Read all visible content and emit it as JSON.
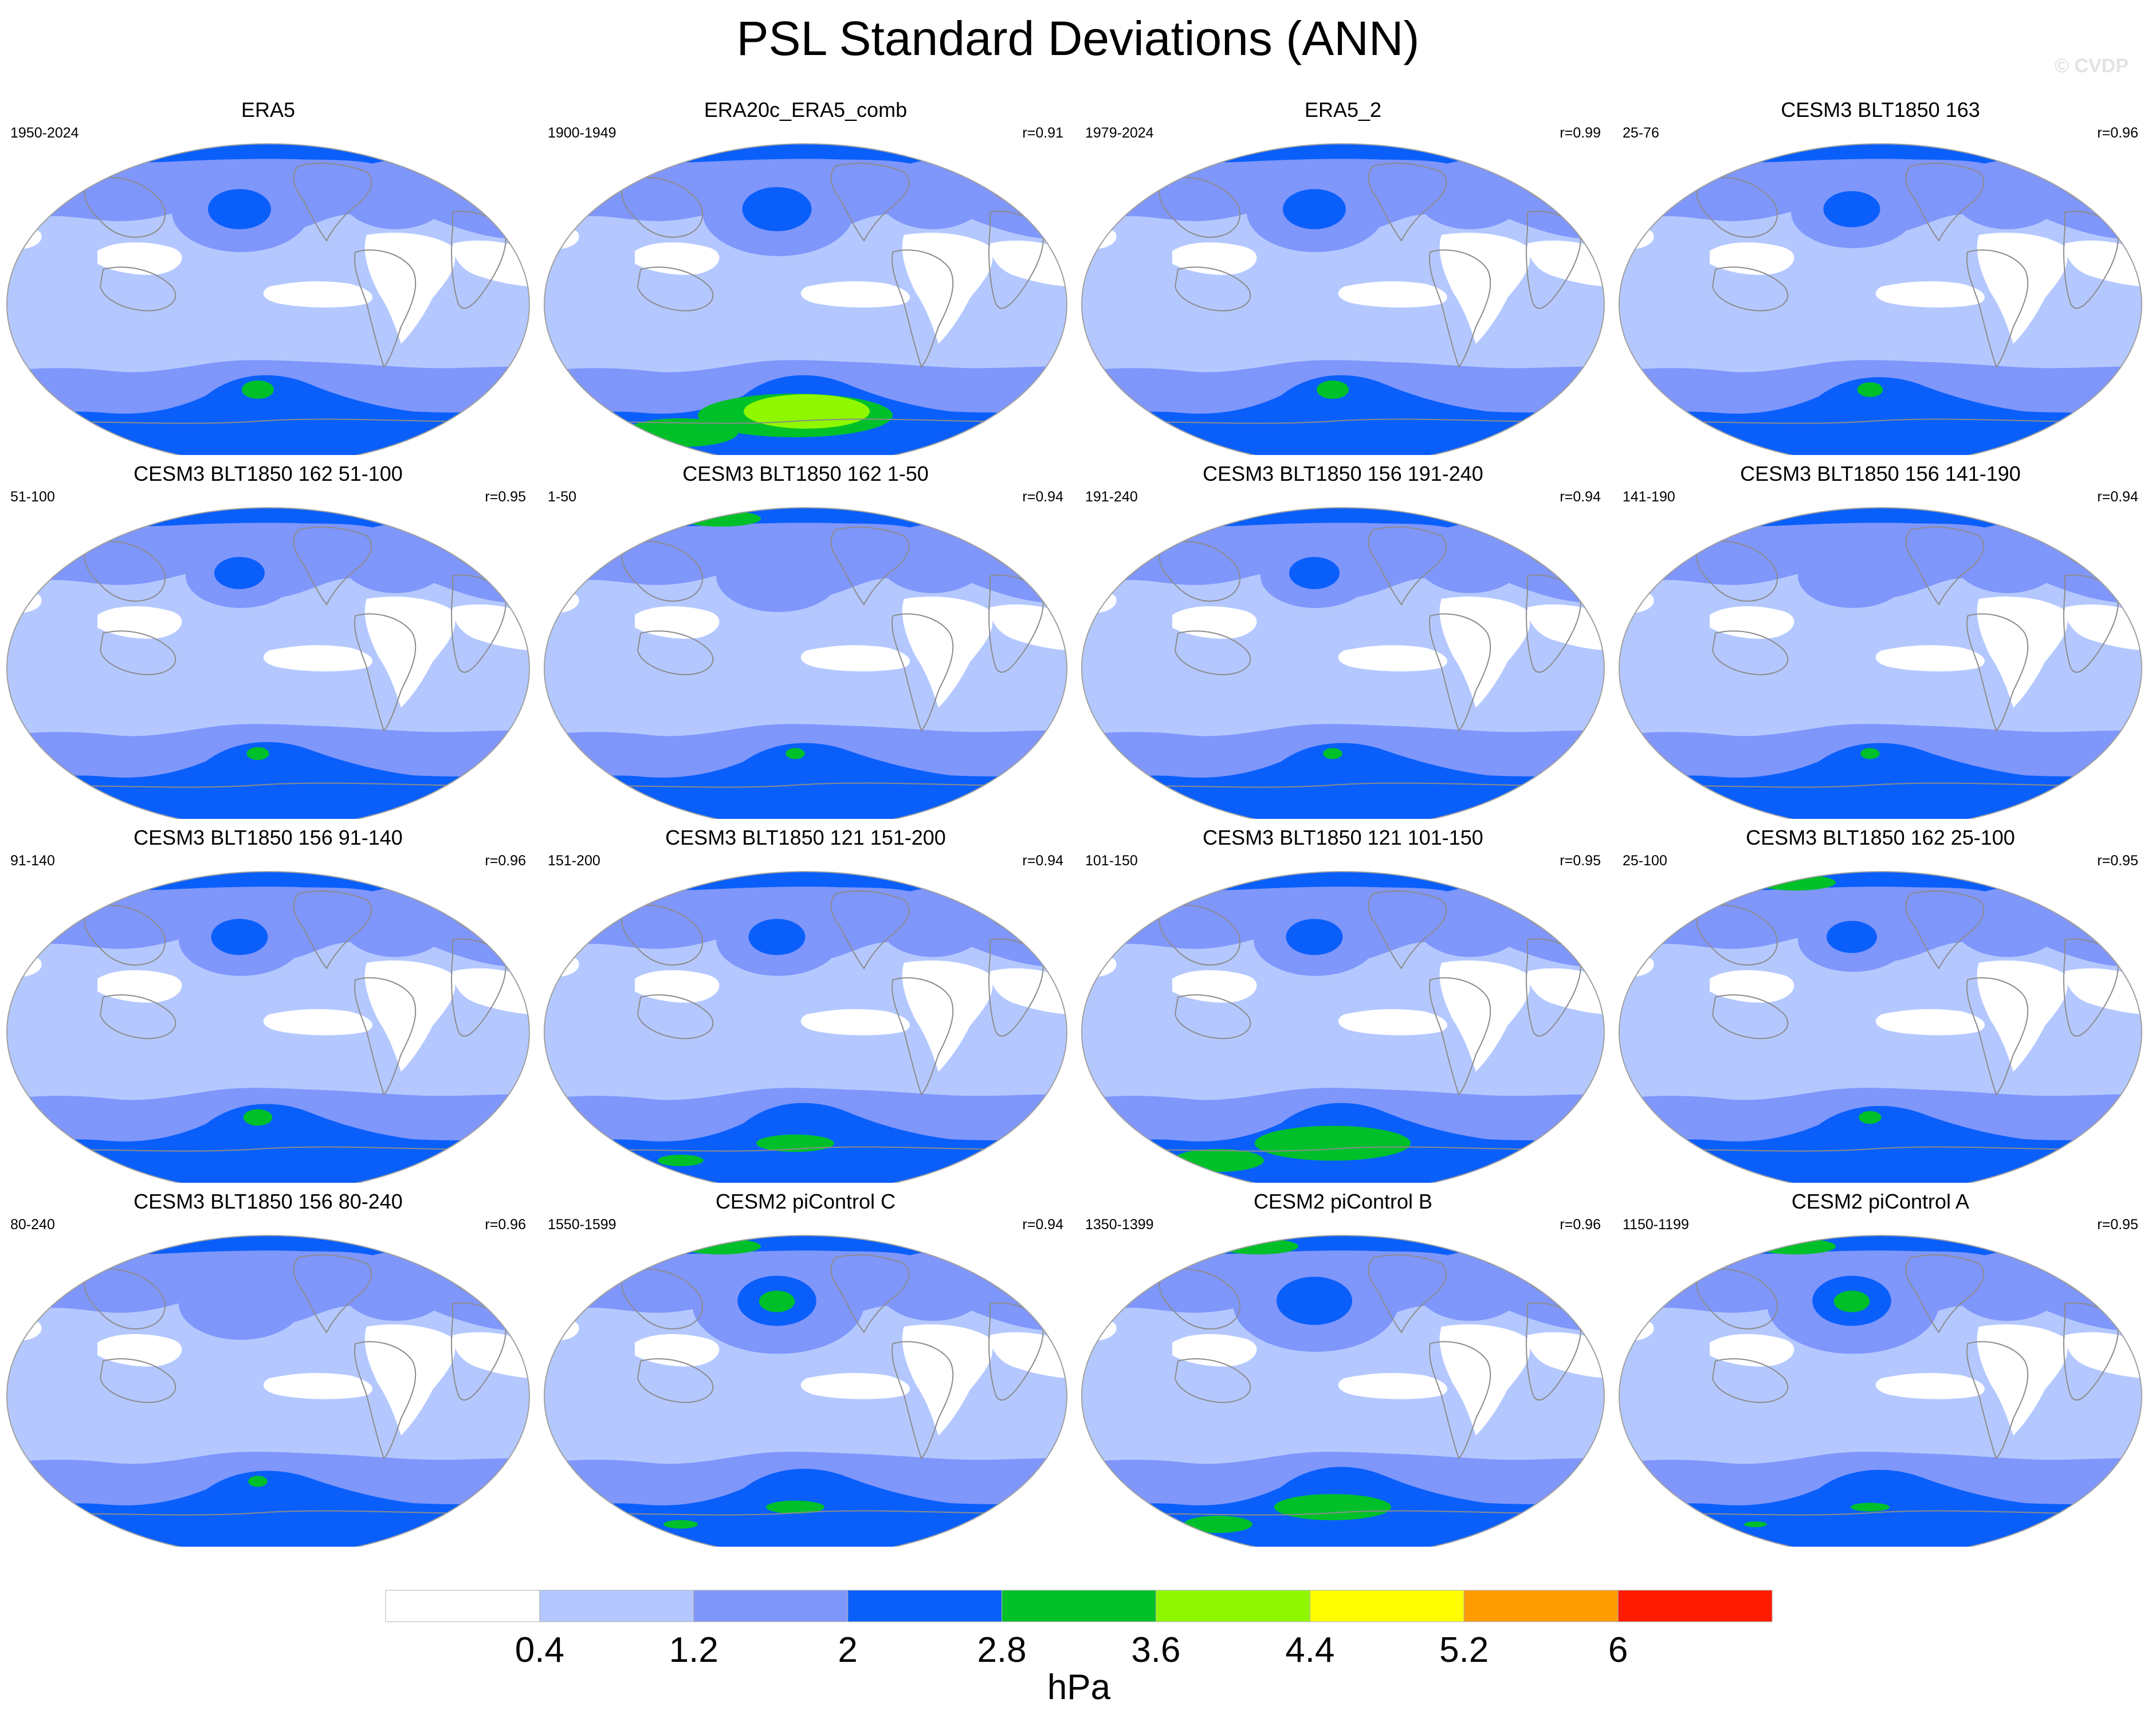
{
  "title": "PSL Standard Deviations (ANN)",
  "watermark": "© CVDP",
  "chart_data": {
    "type": "heatmap",
    "title": "PSL Standard Deviations (ANN)",
    "projection": "Robinson (Pacific-centered)",
    "units": "hPa",
    "levels": [
      0.4,
      1.2,
      2,
      2.8,
      3.6,
      4.4,
      5.2,
      6
    ],
    "level_labels": [
      "0.4",
      "1.2",
      "2",
      "2.8",
      "3.6",
      "4.4",
      "5.2",
      "6"
    ],
    "colors": [
      "#ffffff",
      "#b4c8ff",
      "#7f96fb",
      "#0a5ffa",
      "#00c02a",
      "#8ff800",
      "#ffff00",
      "#ff9c00",
      "#ff1c00"
    ],
    "panels": [
      {
        "name": "ERA5",
        "years": "1950-2024",
        "r": ""
      },
      {
        "name": "ERA20c_ERA5_comb",
        "years": "1900-1949",
        "r": "r=0.91"
      },
      {
        "name": "ERA5_2",
        "years": "1979-2024",
        "r": "r=0.99"
      },
      {
        "name": "CESM3 BLT1850 163",
        "years": "25-76",
        "r": "r=0.96"
      },
      {
        "name": "CESM3 BLT1850 162 51-100",
        "years": "51-100",
        "r": "r=0.95"
      },
      {
        "name": "CESM3 BLT1850 162 1-50",
        "years": "1-50",
        "r": "r=0.94"
      },
      {
        "name": "CESM3 BLT1850 156 191-240",
        "years": "191-240",
        "r": "r=0.94"
      },
      {
        "name": "CESM3 BLT1850 156 141-190",
        "years": "141-190",
        "r": "r=0.94"
      },
      {
        "name": "CESM3 BLT1850 156 91-140",
        "years": "91-140",
        "r": "r=0.96"
      },
      {
        "name": "CESM3 BLT1850 121 151-200",
        "years": "151-200",
        "r": "r=0.94"
      },
      {
        "name": "CESM3 BLT1850 121 101-150",
        "years": "101-150",
        "r": "r=0.95"
      },
      {
        "name": "CESM3 BLT1850 162 25-100",
        "years": "25-100",
        "r": "r=0.95"
      },
      {
        "name": "CESM3 BLT1850 156 80-240",
        "years": "80-240",
        "r": "r=0.96"
      },
      {
        "name": "CESM2 piControl C",
        "years": "1550-1599",
        "r": "r=0.94"
      },
      {
        "name": "CESM2 piControl B",
        "years": "1350-1399",
        "r": "r=0.96"
      },
      {
        "name": "CESM2 piControl A",
        "years": "1150-1199",
        "r": "r=0.95"
      }
    ]
  }
}
